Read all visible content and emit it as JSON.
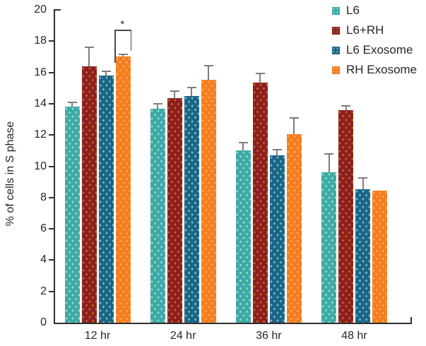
{
  "chart_data": {
    "type": "bar",
    "title": "",
    "ylabel": "% of cells in S phase",
    "xlabel": "",
    "categories": [
      "12 hr",
      "24 hr",
      "36 hr",
      "48 hr"
    ],
    "series": [
      {
        "name": "L6",
        "color": "#3FA9A5",
        "dot_color": "#96DCD6",
        "values": [
          13.8,
          13.7,
          11.0,
          9.6
        ],
        "errors": [
          0.3,
          0.3,
          0.5,
          1.2
        ]
      },
      {
        "name": "L6+RH",
        "color": "#8C1F21",
        "dot_color": "#C8681E",
        "values": [
          16.4,
          14.35,
          15.35,
          13.6
        ],
        "errors": [
          1.2,
          0.45,
          0.6,
          0.25
        ]
      },
      {
        "name": "L6 Exosome",
        "color": "#1E6584",
        "dot_color": "#6FC0D4",
        "values": [
          15.8,
          14.5,
          10.7,
          8.55
        ],
        "errors": [
          0.25,
          0.55,
          0.35,
          0.7
        ]
      },
      {
        "name": "RH Exosome",
        "color": "#F57E20",
        "dot_color": "#FBAC58",
        "values": [
          17.0,
          15.55,
          12.05,
          8.45
        ],
        "errors": [
          0.15,
          0.9,
          1.05,
          0
        ]
      }
    ],
    "ylim": [
      0,
      20
    ],
    "yticks": [
      0,
      2,
      4,
      6,
      8,
      10,
      12,
      14,
      16,
      18,
      20
    ],
    "grid": false,
    "legend_position": "top-right",
    "annotation": {
      "label": "*",
      "category": "12 hr",
      "from_series": "L6 Exosome",
      "to_series": "RH Exosome"
    }
  }
}
